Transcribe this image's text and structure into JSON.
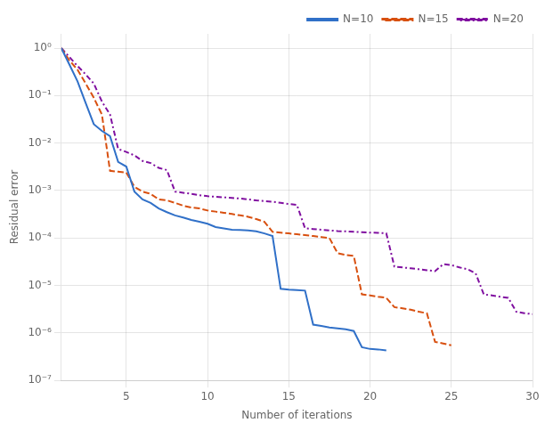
{
  "chart_data": {
    "type": "line",
    "xlabel": "Number of iterations",
    "ylabel": "Residual error",
    "log": "y",
    "grid": true,
    "legend": "upper right",
    "xlim": [
      1,
      30
    ],
    "ylim": [
      1e-07,
      2
    ],
    "xticks": [
      5,
      10,
      15,
      20,
      25,
      30
    ],
    "yticks": [
      {
        "value": 1e-07,
        "label": "10⁻⁷"
      },
      {
        "value": 1e-06,
        "label": "10⁻⁶"
      },
      {
        "value": 1e-05,
        "label": "10⁻⁵"
      },
      {
        "value": 0.0001,
        "label": "10⁻⁴"
      },
      {
        "value": 0.001,
        "label": "10⁻³"
      },
      {
        "value": 0.01,
        "label": "10⁻²"
      },
      {
        "value": 0.1,
        "label": "10⁻¹"
      },
      {
        "value": 1,
        "label": "10⁰"
      }
    ],
    "series": [
      {
        "name": "N=10",
        "color": "#3070c8",
        "line_style": "solid",
        "x": [
          1,
          1.5,
          2,
          2.5,
          3,
          3.5,
          4,
          4.5,
          5,
          5.5,
          6,
          6.5,
          7,
          7.5,
          8,
          8.5,
          9,
          9.5,
          10,
          10.5,
          11,
          11.5,
          12,
          12.5,
          13,
          13.5,
          14,
          14.5,
          15,
          15.5,
          16,
          16.5,
          17,
          17.5,
          18,
          18.5,
          19,
          19.5,
          20,
          20.5,
          21
        ],
        "values": [
          1.0,
          0.45,
          0.2,
          0.07,
          0.025,
          0.018,
          0.014,
          0.004,
          0.0032,
          0.00095,
          0.00065,
          0.00055,
          0.00042,
          0.00035,
          0.0003,
          0.00027,
          0.00024,
          0.00022,
          0.0002,
          0.00017,
          0.00016,
          0.00015,
          0.000148,
          0.000145,
          0.000138,
          0.000125,
          0.00011,
          8.5e-06,
          8.2e-06,
          8e-06,
          7.8e-06,
          1.5e-06,
          1.4e-06,
          1.3e-06,
          1.25e-06,
          1.2e-06,
          1.1e-06,
          5e-07,
          4.6e-07,
          4.5e-07,
          4.3e-07
        ]
      },
      {
        "name": "N=15",
        "color": "#d85010",
        "line_style": "dashed",
        "x": [
          1,
          1.5,
          2,
          2.5,
          3,
          3.5,
          4,
          4.5,
          5,
          5.5,
          6,
          6.5,
          7,
          7.5,
          8,
          8.5,
          9,
          9.5,
          10,
          10.5,
          11,
          11.5,
          12,
          12.5,
          13,
          13.5,
          14,
          14.5,
          15,
          15.5,
          16,
          16.5,
          17,
          17.5,
          18,
          18.5,
          19,
          19.5,
          20,
          20.5,
          21,
          21.5,
          22,
          22.5,
          23,
          23.5,
          24,
          24.5,
          25
        ],
        "values": [
          1.0,
          0.55,
          0.35,
          0.18,
          0.09,
          0.04,
          0.0026,
          0.0025,
          0.0024,
          0.0012,
          0.00095,
          0.00085,
          0.00065,
          0.00062,
          0.00055,
          0.00048,
          0.00044,
          0.00042,
          0.00038,
          0.00036,
          0.00034,
          0.00032,
          0.0003,
          0.00028,
          0.00025,
          0.00022,
          0.000135,
          0.00013,
          0.000125,
          0.00012,
          0.000115,
          0.00011,
          0.000105,
          0.0001,
          4.8e-05,
          4.4e-05,
          4.2e-05,
          6.5e-06,
          6.2e-06,
          5.8e-06,
          5.5e-06,
          3.5e-06,
          3.3e-06,
          3.1e-06,
          2.8e-06,
          2.6e-06,
          6.5e-07,
          6e-07,
          5.5e-07
        ]
      },
      {
        "name": "N=20",
        "color": "#8010a0",
        "line_style": "dashdot",
        "x": [
          1,
          1.5,
          2,
          2.5,
          3,
          3.5,
          4,
          4.5,
          5,
          5.5,
          6,
          6.5,
          7,
          7.5,
          8,
          8.5,
          9,
          9.5,
          10,
          10.5,
          11,
          11.5,
          12,
          12.5,
          13,
          13.5,
          14,
          14.5,
          15,
          15.5,
          16,
          16.5,
          17,
          17.5,
          18,
          18.5,
          19,
          19.5,
          20,
          20.5,
          21,
          21.5,
          22,
          22.5,
          23,
          23.5,
          24,
          24.5,
          25,
          25.5,
          26,
          26.5,
          27,
          27.5,
          28,
          28.5,
          29,
          29.5,
          30
        ],
        "values": [
          1.0,
          0.65,
          0.42,
          0.28,
          0.18,
          0.075,
          0.04,
          0.0075,
          0.0065,
          0.0055,
          0.0042,
          0.0038,
          0.003,
          0.0027,
          0.00095,
          0.0009,
          0.00085,
          0.0008,
          0.00076,
          0.00074,
          0.00072,
          0.0007,
          0.00068,
          0.00065,
          0.00062,
          0.0006,
          0.00058,
          0.00055,
          0.00052,
          0.0005,
          0.00016,
          0.000155,
          0.00015,
          0.000145,
          0.00014,
          0.000138,
          0.000135,
          0.000133,
          0.00013,
          0.000128,
          0.000126,
          2.5e-05,
          2.4e-05,
          2.3e-05,
          2.2e-05,
          2.1e-05,
          2e-05,
          2.8e-05,
          2.7e-05,
          2.4e-05,
          2.2e-05,
          1.8e-05,
          6.5e-06,
          6.2e-06,
          5.8e-06,
          5.5e-06,
          2.8e-06,
          2.6e-06,
          2.5e-06
        ]
      }
    ]
  }
}
